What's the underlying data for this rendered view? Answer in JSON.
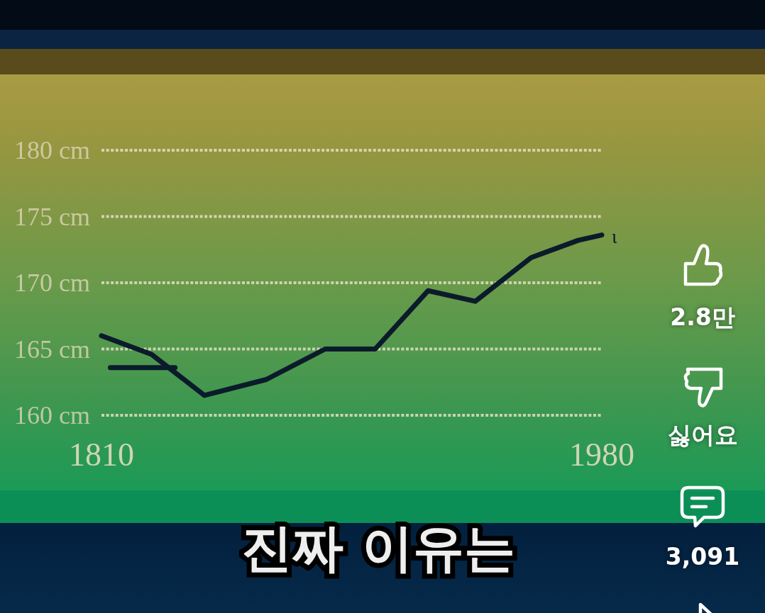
{
  "chart_data": {
    "type": "line",
    "series": [
      {
        "name": "ι",
        "color": "#0b1b2b",
        "x": [
          1810,
          1827,
          1845,
          1866,
          1886,
          1903,
          1921,
          1937,
          1956,
          1972,
          1980
        ],
        "values": [
          166.0,
          164.6,
          161.5,
          162.7,
          165.0,
          165.0,
          169.4,
          168.6,
          171.9,
          173.2,
          173.6
        ]
      },
      {
        "color": "#0b1b2b",
        "x": [
          1813,
          1835
        ],
        "values": [
          163.6,
          163.6
        ]
      }
    ],
    "xlim": [
      1810,
      1980
    ],
    "xticks": [
      1810,
      1980
    ],
    "ylim": [
      160,
      180
    ],
    "yticks": [
      {
        "value": 160,
        "label": "160 cm"
      },
      {
        "value": 165,
        "label": "165 cm"
      },
      {
        "value": 170,
        "label": "170 cm"
      },
      {
        "value": 175,
        "label": "175 cm"
      },
      {
        "value": 180,
        "label": "180 cm"
      }
    ],
    "grid": "y",
    "annotations": [
      "진짜 이유는",
      "2.8만",
      "싫어요",
      "3,091"
    ]
  }
}
